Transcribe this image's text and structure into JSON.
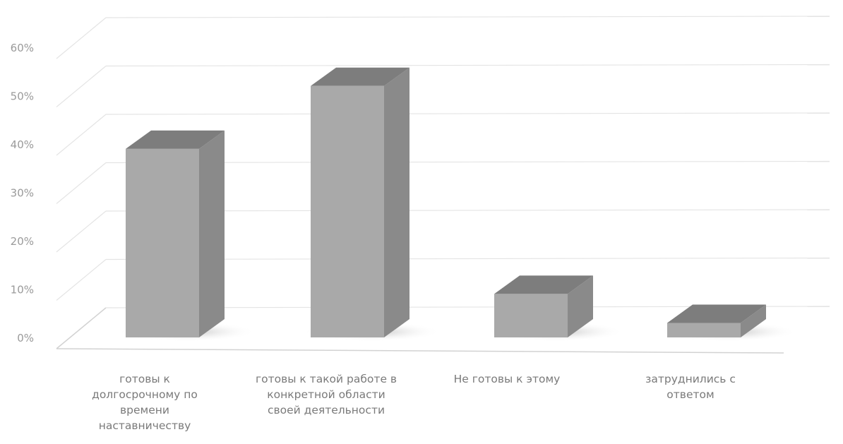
{
  "chart_data": {
    "type": "bar",
    "three_d": true,
    "title": "",
    "xlabel": "",
    "ylabel": "",
    "categories": [
      "готовы к долгосрочному по времени наставничеству",
      "готовы к такой работе в конкретной области своей деятельности",
      "Не готовы к этому",
      "затруднились с ответом"
    ],
    "category_lines": [
      [
        "готовы к",
        "долгосрочному по",
        "времени",
        "наставничеству"
      ],
      [
        "готовы к такой работе в",
        "конкретной области",
        "своей деятельности"
      ],
      [
        "Не готовы к этому"
      ],
      [
        "затруднились с",
        "ответом"
      ]
    ],
    "values": [
      39,
      52,
      9,
      3
    ],
    "ylim": [
      0,
      60
    ],
    "yticks": [
      "0%",
      "10%",
      "20%",
      "30%",
      "40%",
      "50%",
      "60%"
    ],
    "grid": true,
    "legend": "none",
    "colors": {
      "front": "#a9a9a9",
      "side": "#8a8a8a",
      "top": "#7d7d7d",
      "shadow": "#cfcfcf"
    }
  }
}
